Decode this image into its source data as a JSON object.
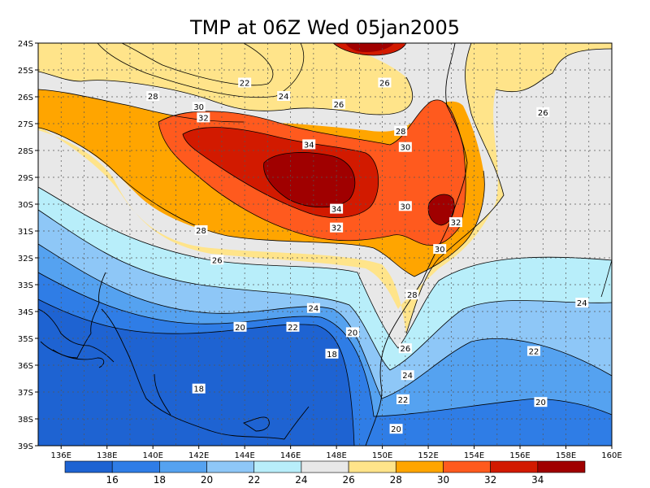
{
  "title": "TMP at 06Z Wed 05jan2005",
  "lat_labels": [
    "24S",
    "25S",
    "26S",
    "27S",
    "28S",
    "29S",
    "30S",
    "31S",
    "32S",
    "33S",
    "34S",
    "35S",
    "36S",
    "37S",
    "38S",
    "39S"
  ],
  "lon_labels": [
    "136E",
    "138E",
    "140E",
    "142E",
    "144E",
    "146E",
    "148E",
    "150E",
    "152E",
    "154E",
    "156E",
    "158E",
    "160E"
  ],
  "contour_labels": [
    {
      "text": "22",
      "lon": 144.0,
      "lat": -25.5
    },
    {
      "text": "24",
      "lon": 145.7,
      "lat": -26.0
    },
    {
      "text": "26",
      "lon": 150.1,
      "lat": -25.5
    },
    {
      "text": "26",
      "lon": 148.1,
      "lat": -26.3
    },
    {
      "text": "26",
      "lon": 157.0,
      "lat": -26.6
    },
    {
      "text": "28",
      "lon": 140.0,
      "lat": -26.0
    },
    {
      "text": "30",
      "lon": 142.0,
      "lat": -26.4
    },
    {
      "text": "32",
      "lon": 142.2,
      "lat": -26.8
    },
    {
      "text": "34",
      "lon": 146.8,
      "lat": -27.8
    },
    {
      "text": "28",
      "lon": 150.8,
      "lat": -27.3
    },
    {
      "text": "30",
      "lon": 151.0,
      "lat": -27.9
    },
    {
      "text": "30",
      "lon": 151.0,
      "lat": -30.1
    },
    {
      "text": "34",
      "lon": 148.0,
      "lat": -30.2
    },
    {
      "text": "32",
      "lon": 148.0,
      "lat": -30.9
    },
    {
      "text": "32",
      "lon": 153.2,
      "lat": -30.7
    },
    {
      "text": "28",
      "lon": 142.1,
      "lat": -31.0
    },
    {
      "text": "30",
      "lon": 152.5,
      "lat": -31.7
    },
    {
      "text": "26",
      "lon": 142.8,
      "lat": -32.1
    },
    {
      "text": "28",
      "lon": 151.3,
      "lat": -33.4
    },
    {
      "text": "24",
      "lon": 158.7,
      "lat": -33.7
    },
    {
      "text": "24",
      "lon": 147.0,
      "lat": -33.9
    },
    {
      "text": "22",
      "lon": 146.1,
      "lat": -34.6
    },
    {
      "text": "20",
      "lon": 143.8,
      "lat": -34.6
    },
    {
      "text": "20",
      "lon": 148.7,
      "lat": -34.8
    },
    {
      "text": "26",
      "lon": 151.0,
      "lat": -35.4
    },
    {
      "text": "22",
      "lon": 156.6,
      "lat": -35.5
    },
    {
      "text": "18",
      "lon": 147.8,
      "lat": -35.6
    },
    {
      "text": "24",
      "lon": 151.1,
      "lat": -36.4
    },
    {
      "text": "18",
      "lon": 142.0,
      "lat": -36.9
    },
    {
      "text": "22",
      "lon": 150.9,
      "lat": -37.3
    },
    {
      "text": "20",
      "lon": 156.9,
      "lat": -37.4
    },
    {
      "text": "20",
      "lon": 150.6,
      "lat": -38.4
    }
  ],
  "colorbar": {
    "labels": [
      "16",
      "18",
      "20",
      "22",
      "24",
      "26",
      "28",
      "30",
      "32",
      "34"
    ],
    "colors": [
      "#1e63d2",
      "#2f7de6",
      "#55a2f0",
      "#8ec7f7",
      "#b8eefa",
      "#e8e8e8",
      "#ffe48a",
      "#ffa500",
      "#ff5a1e",
      "#d21a00",
      "#a00000"
    ]
  },
  "layer_colors": {
    "t16": "#1e63d2",
    "t18": "#2f7de6",
    "t20": "#55a2f0",
    "t22": "#8ec7f7",
    "t24": "#b8eefa",
    "t26": "#e8e8e8",
    "t28": "#ffe48a",
    "t30": "#ffa500",
    "t32": "#ff5a1e",
    "t34": "#d21a00",
    "t36": "#a00000"
  }
}
